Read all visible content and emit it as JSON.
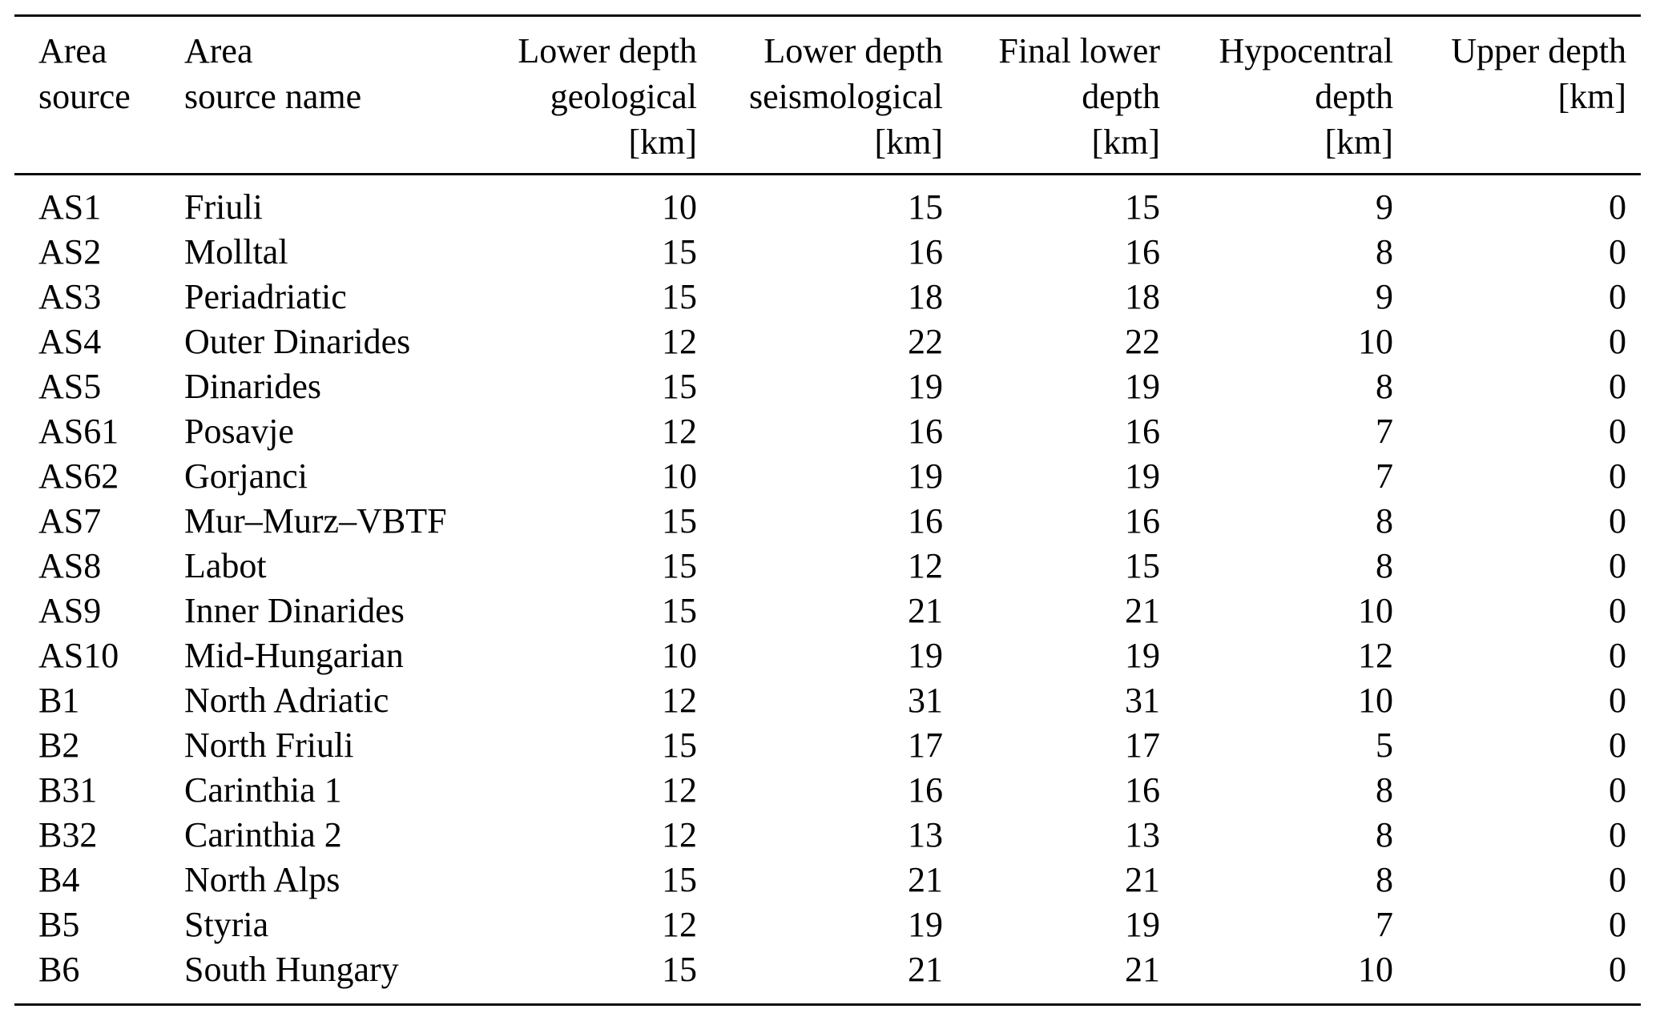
{
  "colors": {
    "background": "#ffffff",
    "text": "#000000",
    "rule": "#0c0c0c"
  },
  "table": {
    "headers": [
      {
        "name": "area-source",
        "text": "Area\nsource"
      },
      {
        "name": "area-source-name",
        "text": "Area\nsource name"
      },
      {
        "name": "lower-depth-geological",
        "text": "Lower depth\ngeological\n[km]"
      },
      {
        "name": "lower-depth-seismological",
        "text": "Lower depth\nseismological\n[km]"
      },
      {
        "name": "final-lower-depth",
        "text": "Final lower\ndepth\n[km]"
      },
      {
        "name": "hypocentral-depth",
        "text": "Hypocentral\ndepth\n[km]"
      },
      {
        "name": "upper-depth",
        "text": "Upper depth\n[km]"
      }
    ],
    "rows": [
      [
        "AS1",
        "Friuli",
        10,
        15,
        15,
        9,
        0
      ],
      [
        "AS2",
        "Molltal",
        15,
        16,
        16,
        8,
        0
      ],
      [
        "AS3",
        "Periadriatic",
        15,
        18,
        18,
        9,
        0
      ],
      [
        "AS4",
        "Outer Dinarides",
        12,
        22,
        22,
        10,
        0
      ],
      [
        "AS5",
        "Dinarides",
        15,
        19,
        19,
        8,
        0
      ],
      [
        "AS61",
        "Posavje",
        12,
        16,
        16,
        7,
        0
      ],
      [
        "AS62",
        "Gorjanci",
        10,
        19,
        19,
        7,
        0
      ],
      [
        "AS7",
        "Mur–Murz–VBTF",
        15,
        16,
        16,
        8,
        0
      ],
      [
        "AS8",
        "Labot",
        15,
        12,
        15,
        8,
        0
      ],
      [
        "AS9",
        "Inner Dinarides",
        15,
        21,
        21,
        10,
        0
      ],
      [
        "AS10",
        "Mid-Hungarian",
        10,
        19,
        19,
        12,
        0
      ],
      [
        "B1",
        "North Adriatic",
        12,
        31,
        31,
        10,
        0
      ],
      [
        "B2",
        "North Friuli",
        15,
        17,
        17,
        5,
        0
      ],
      [
        "B31",
        "Carinthia 1",
        12,
        16,
        16,
        8,
        0
      ],
      [
        "B32",
        "Carinthia 2",
        12,
        13,
        13,
        8,
        0
      ],
      [
        "B4",
        "North Alps",
        15,
        21,
        21,
        8,
        0
      ],
      [
        "B5",
        "Styria",
        12,
        19,
        19,
        7,
        0
      ],
      [
        "B6",
        "South Hungary",
        15,
        21,
        21,
        10,
        0
      ]
    ]
  }
}
